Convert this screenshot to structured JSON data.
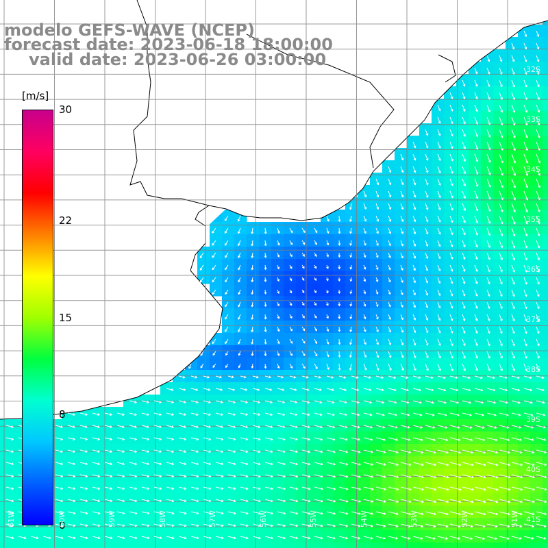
{
  "title": {
    "line1": "modelo GEFS-WAVE (NCEP)",
    "line2": "forecast date: 2023-06-18 18:00:00",
    "line3": "valid date: 2023-06-26 03:00:00"
  },
  "legend": {
    "unit": "[m/s]",
    "ticks": [
      {
        "label": "30",
        "value": 30
      },
      {
        "label": "22",
        "value": 22
      },
      {
        "label": "15",
        "value": 15
      },
      {
        "label": "8",
        "value": 8
      },
      {
        "label": "0",
        "value": 0
      }
    ],
    "range": [
      0,
      30
    ],
    "colors": [
      "#0000ff",
      "#0060ff",
      "#00c8ff",
      "#00ffd0",
      "#00ff40",
      "#a0ff00",
      "#ffff00",
      "#ff8000",
      "#ff0000",
      "#ff0060",
      "#c8008c"
    ]
  },
  "map": {
    "variable": "wind speed and direction",
    "land_color": "#ffffff",
    "coastline_color": "#000000",
    "grid_color": "#808080",
    "lat_labels": [
      "32S",
      "33S",
      "34S",
      "35S",
      "36S",
      "37S",
      "38S",
      "39S",
      "40S",
      "41S"
    ],
    "lon_labels": [
      "61W",
      "60W",
      "59W",
      "58W",
      "57W",
      "56W",
      "55W",
      "54W",
      "53W",
      "52W",
      "51W"
    ]
  }
}
